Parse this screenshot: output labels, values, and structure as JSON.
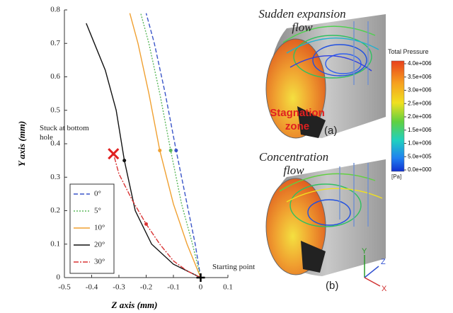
{
  "chart_data": {
    "type": "line",
    "xlabel": "Z axis (mm)",
    "ylabel": "Y axis (mm)",
    "xlim": [
      -0.5,
      0.1
    ],
    "xticks": [
      -0.5,
      -0.4,
      -0.3,
      -0.2,
      -0.1,
      0,
      0.1
    ],
    "ylim": [
      0,
      0.8
    ],
    "yticks": [
      0,
      0.1,
      0.2,
      0.3,
      0.4,
      0.5,
      0.6,
      0.7,
      0.8
    ],
    "legend": "lower left",
    "series": [
      {
        "name": "0°",
        "color": "#3a55c8",
        "style": "dashed",
        "x": [
          0,
          -0.02,
          -0.05,
          -0.09,
          -0.13,
          -0.17,
          -0.2
        ],
        "values": [
          0,
          0.1,
          0.22,
          0.38,
          0.55,
          0.7,
          0.79
        ]
      },
      {
        "name": "5°",
        "color": "#5cb85c",
        "style": "dotted",
        "x": [
          0,
          -0.03,
          -0.07,
          -0.11,
          -0.15,
          -0.19,
          -0.22
        ],
        "values": [
          0,
          0.1,
          0.22,
          0.38,
          0.55,
          0.7,
          0.79
        ]
      },
      {
        "name": "10°",
        "color": "#f0a030",
        "style": "solid",
        "x": [
          0,
          -0.05,
          -0.1,
          -0.15,
          -0.19,
          -0.23,
          -0.26
        ],
        "values": [
          0,
          0.1,
          0.22,
          0.38,
          0.55,
          0.7,
          0.79
        ]
      },
      {
        "name": "20°",
        "color": "#111111",
        "style": "solid",
        "x": [
          0,
          -0.1,
          -0.18,
          -0.24,
          -0.28,
          -0.31,
          -0.35,
          -0.4,
          -0.42
        ],
        "values": [
          0,
          0.04,
          0.1,
          0.2,
          0.35,
          0.5,
          0.62,
          0.72,
          0.76
        ]
      },
      {
        "name": "30°",
        "color": "#d93333",
        "style": "dashdot",
        "x": [
          0,
          -0.05,
          -0.1,
          -0.15,
          -0.2,
          -0.25,
          -0.3,
          -0.32
        ],
        "values": [
          0,
          0.02,
          0.05,
          0.1,
          0.16,
          0.23,
          0.31,
          0.37
        ]
      }
    ],
    "annotations": [
      "Stuck at bottom hole",
      "Starting point"
    ]
  },
  "panels": [
    {
      "title": "Sudden expansion flow",
      "zone": "Stagnation zone",
      "label": "(a)"
    },
    {
      "title": "Concentration flow",
      "label": "(b)"
    }
  ],
  "colorbar": {
    "title": "Total Pressure",
    "unit": "[Pa]",
    "lim": [
      0,
      4000000
    ],
    "ticks": [
      {
        "value": 4000000,
        "label": "4.0e+006"
      },
      {
        "value": 3500000,
        "label": "3.5e+006"
      },
      {
        "value": 3000000,
        "label": "3.0e+006"
      },
      {
        "value": 2500000,
        "label": "2.5e+006"
      },
      {
        "value": 2000000,
        "label": "2.0e+006"
      },
      {
        "value": 1500000,
        "label": "1.5e+006"
      },
      {
        "value": 1000000,
        "label": "1.0e+006"
      },
      {
        "value": 500000,
        "label": "5.0e+005"
      },
      {
        "value": 0,
        "label": "0.0e+000"
      }
    ]
  },
  "axes_triad": [
    "Y",
    "Z",
    "X"
  ]
}
